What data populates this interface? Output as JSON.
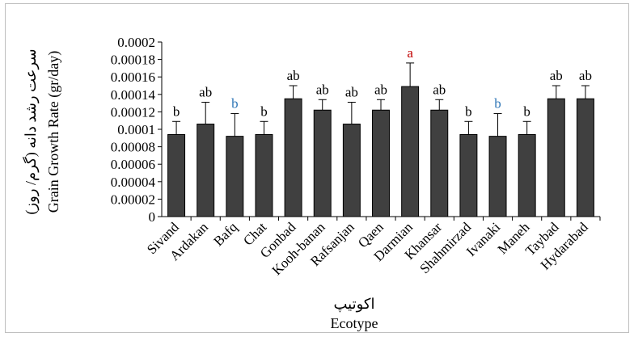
{
  "chart_data": {
    "type": "bar",
    "categories": [
      "Sivand",
      "Ardakan",
      "Bafq",
      "Chat",
      "Gonbad",
      "Kooh-banan",
      "Rafsanjan",
      "Qaen",
      "Darmian",
      "Khansar",
      "Shahmirzad",
      "Ivanaki",
      "Maneh",
      "Taybad",
      "Hydarabad"
    ],
    "values": [
      9.4e-05,
      0.000106,
      9.2e-05,
      9.4e-05,
      0.000135,
      0.000122,
      0.000106,
      0.000122,
      0.000149,
      0.000122,
      9.4e-05,
      9.2e-05,
      9.4e-05,
      0.000135,
      0.000135
    ],
    "errors": [
      1.5e-05,
      2.5e-05,
      2.6e-05,
      1.5e-05,
      1.5e-05,
      1.2e-05,
      2.5e-05,
      1.2e-05,
      2.7e-05,
      1.2e-05,
      1.5e-05,
      2.6e-05,
      1.5e-05,
      1.5e-05,
      1.5e-05
    ],
    "labels": [
      "b",
      "ab",
      "b",
      "b",
      "ab",
      "ab",
      "ab",
      "ab",
      "a",
      "ab",
      "b",
      "b",
      "b",
      "ab",
      "ab"
    ],
    "label_colors": [
      "#000000",
      "#000000",
      "#2e75b6",
      "#000000",
      "#000000",
      "#000000",
      "#000000",
      "#000000",
      "#c00000",
      "#000000",
      "#000000",
      "#2e75b6",
      "#000000",
      "#000000",
      "#000000"
    ],
    "yticks": [
      "0",
      "0.00002",
      "0.00004",
      "0.00006",
      "0.00008",
      "0.0001",
      "0.00012",
      "0.00014",
      "0.00016",
      "0.00018",
      "0.0002"
    ],
    "ylim": [
      0,
      0.0002
    ],
    "ylabel": "Grain Growth Rate (gr/day)",
    "ylabel_fa": "سرعت رشد دانه (گرم/ روز)",
    "xlabel": "Ecotype",
    "xlabel_fa": "اکوتیپ",
    "bar_color": "#404040",
    "grid": false
  }
}
